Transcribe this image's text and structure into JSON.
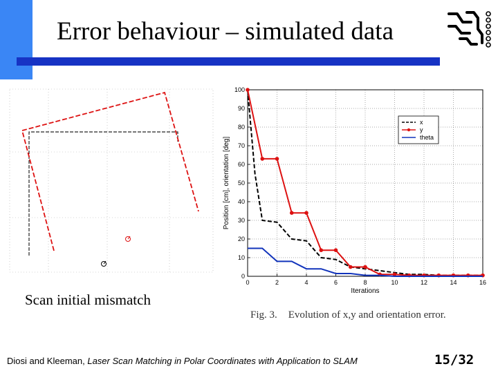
{
  "slide": {
    "title": "Error behaviour – simulated data",
    "scan_caption": "Scan initial mismatch",
    "figure_caption_label": "Fig. 3.",
    "figure_caption_text": "Evolution of x,y and orientation error.",
    "citation_authors": "Diosi and Kleeman, ",
    "citation_title": "Laser Scan Matching in Polar Coordinates with Application to SLAM",
    "page_number": "15/32",
    "colors": {
      "strip": "#3a86f5",
      "rule": "#1733c4",
      "y_series": "#dd1111",
      "theta_series": "#1133bb"
    }
  },
  "chart_data": {
    "type": "line",
    "xlabel": "Iterations",
    "ylabel": "Position [cm], orientation [deg]",
    "xlim": [
      0,
      16
    ],
    "ylim": [
      0,
      100
    ],
    "xticks": [
      "0",
      "2",
      "4",
      "6",
      "8",
      "10",
      "12",
      "14",
      "16"
    ],
    "yticks": [
      "0",
      "10",
      "20",
      "30",
      "40",
      "50",
      "60",
      "70",
      "80",
      "90",
      "100"
    ],
    "grid": true,
    "legend_position": "top-right",
    "series": [
      {
        "name": "x",
        "style": "dashed",
        "color": "#000000",
        "x": [
          0,
          0.5,
          1,
          2,
          3,
          4,
          5,
          6,
          7,
          8,
          9,
          10,
          11,
          12,
          13,
          14,
          15,
          16
        ],
        "y": [
          100,
          55,
          30,
          29,
          20,
          19,
          10,
          9,
          5,
          4,
          3,
          2,
          1,
          1,
          0.5,
          0.5,
          0.5,
          0.5
        ]
      },
      {
        "name": "y",
        "style": "solid-markers",
        "color": "#dd1111",
        "x": [
          0,
          1,
          2,
          3,
          4,
          5,
          6,
          7,
          8,
          9,
          10,
          11,
          12,
          13,
          14,
          15,
          16
        ],
        "y": [
          100,
          63,
          63,
          34,
          34,
          14,
          14,
          5,
          5,
          1,
          1,
          0.5,
          0.5,
          0.5,
          0.5,
          0.5,
          0.5
        ]
      },
      {
        "name": "theta",
        "style": "solid",
        "color": "#1133bb",
        "x": [
          0,
          1,
          2,
          3,
          4,
          5,
          6,
          7,
          8,
          9,
          10,
          11,
          12,
          13,
          14,
          15,
          16
        ],
        "y": [
          15,
          15,
          8,
          8,
          4,
          4,
          1.5,
          1.5,
          0.5,
          0.5,
          0,
          0,
          0,
          0,
          0,
          0,
          0
        ]
      }
    ]
  }
}
